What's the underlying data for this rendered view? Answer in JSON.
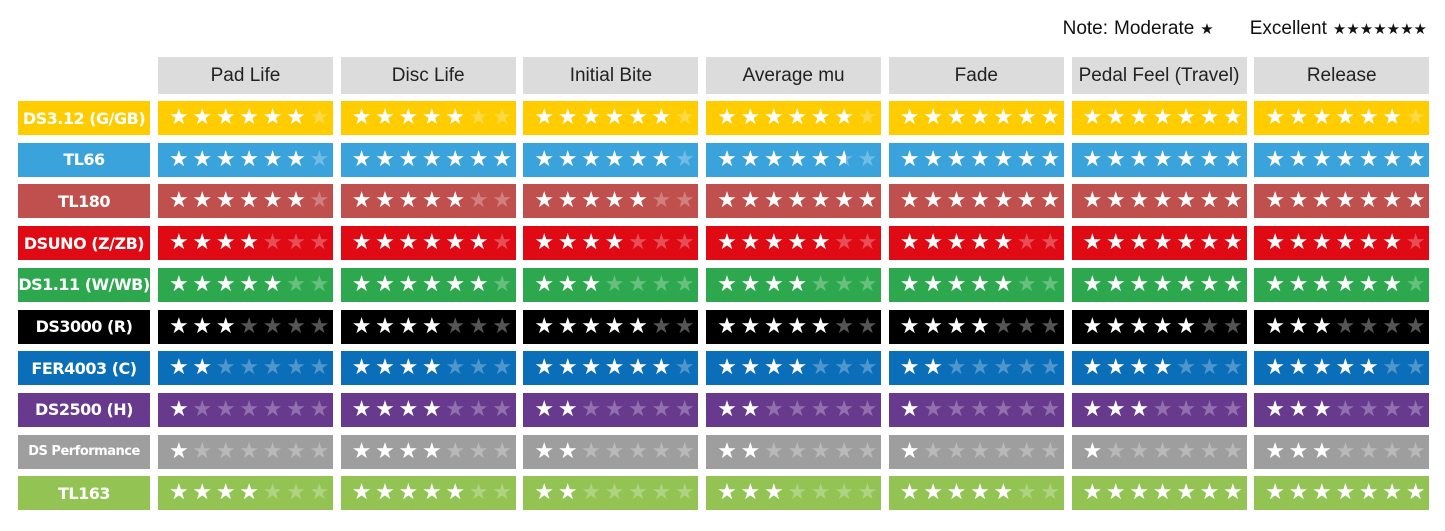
{
  "note": {
    "label": "Note:",
    "moderate": "Moderate",
    "moderate_stars": "★",
    "excellent": "Excellent",
    "excellent_stars": "★★★★★★★"
  },
  "max_stars": 7,
  "columns": [
    "Pad Life",
    "Disc Life",
    "Initial Bite",
    "Average mu",
    "Fade",
    "Pedal Feel (Travel)",
    "Release"
  ],
  "rows": [
    {
      "name": "DS3.12 (G/GB)",
      "color": "#FFCC00",
      "ratings": [
        6,
        5,
        6,
        6,
        7,
        7,
        6
      ]
    },
    {
      "name": "TL66",
      "color": "#3BA3DB",
      "ratings": [
        6,
        7,
        6,
        5.5,
        7,
        7,
        7
      ]
    },
    {
      "name": "TL180",
      "color": "#C0504D",
      "ratings": [
        6,
        5,
        5,
        7,
        7,
        7,
        7
      ]
    },
    {
      "name": "DSUNO (Z/ZB)",
      "color": "#DF0A14",
      "ratings": [
        4,
        6,
        4,
        5,
        5,
        7,
        6
      ]
    },
    {
      "name": "DS1.11 (W/WB)",
      "color": "#2EA84F",
      "ratings": [
        5,
        6,
        3,
        4,
        5,
        7,
        6
      ]
    },
    {
      "name": "DS3000 (R)",
      "color": "#000000",
      "ratings": [
        3,
        4,
        5,
        5,
        4,
        5,
        3
      ]
    },
    {
      "name": "FER4003 (C)",
      "color": "#0B6EB8",
      "ratings": [
        2,
        4,
        6,
        4,
        2,
        4,
        5
      ]
    },
    {
      "name": "DS2500 (H)",
      "color": "#673A8E",
      "ratings": [
        1,
        4,
        2,
        2,
        1,
        3,
        3
      ]
    },
    {
      "name": "DS Performance",
      "color": "#9E9E9E",
      "ratings": [
        1,
        4,
        2,
        2,
        1,
        1,
        3
      ]
    },
    {
      "name": "TL163",
      "color": "#92C353",
      "ratings": [
        4,
        5,
        2,
        3,
        5,
        7,
        7
      ]
    }
  ]
}
